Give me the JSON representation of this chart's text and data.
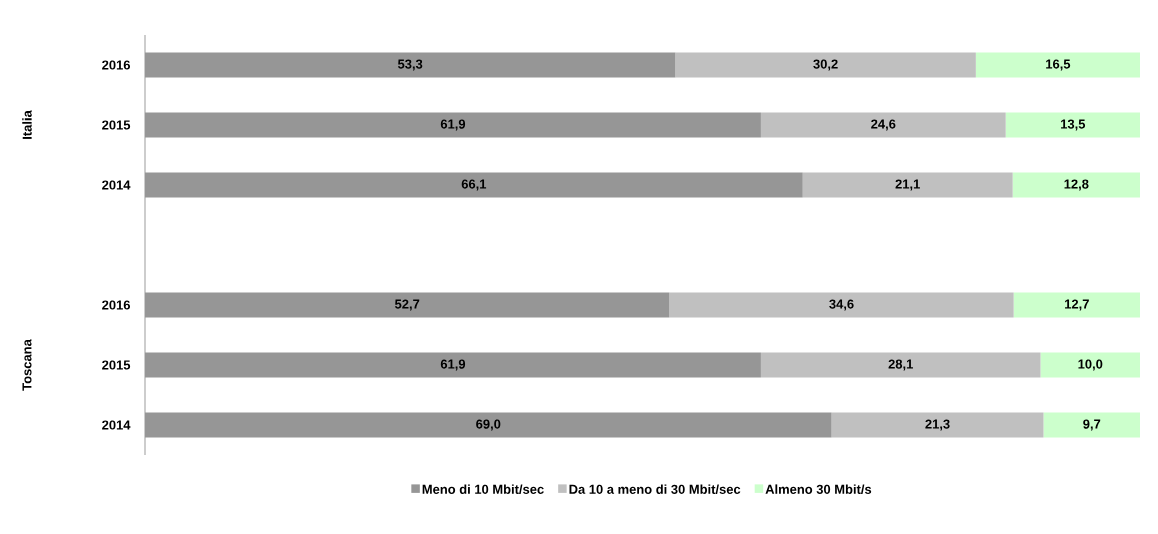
{
  "chart_data": {
    "type": "bar",
    "orientation": "horizontal",
    "stacked": true,
    "legend": "bottom",
    "categories": [
      "2016",
      "2015",
      "2014",
      null,
      "2016",
      "2015",
      "2014"
    ],
    "annotations": [
      "Italia",
      "Toscana"
    ],
    "series": [
      {
        "name": "Meno di 10 Mbit/sec",
        "color": "#969696",
        "values": [
          53.3,
          61.9,
          66.1,
          null,
          52.7,
          61.9,
          69.0
        ],
        "value_labels": [
          "53,3",
          "61,9",
          "66,1",
          null,
          "52,7",
          "61,9",
          "69,0"
        ]
      },
      {
        "name": "Da 10 a meno di 30 Mbit/sec",
        "color": "#c0c0c0",
        "values": [
          30.2,
          24.6,
          21.1,
          null,
          34.6,
          28.1,
          21.3
        ],
        "value_labels": [
          "30,2",
          "24,6",
          "21,1",
          null,
          "34,6",
          "28,1",
          "21,3"
        ]
      },
      {
        "name": "Almeno 30 Mbit/s",
        "color": "#ccffcc",
        "values": [
          16.5,
          13.5,
          12.8,
          null,
          12.7,
          10.0,
          9.7
        ],
        "value_labels": [
          "16,5",
          "13,5",
          "12,8",
          null,
          "12,7",
          "10,0",
          "9,7"
        ]
      }
    ]
  }
}
